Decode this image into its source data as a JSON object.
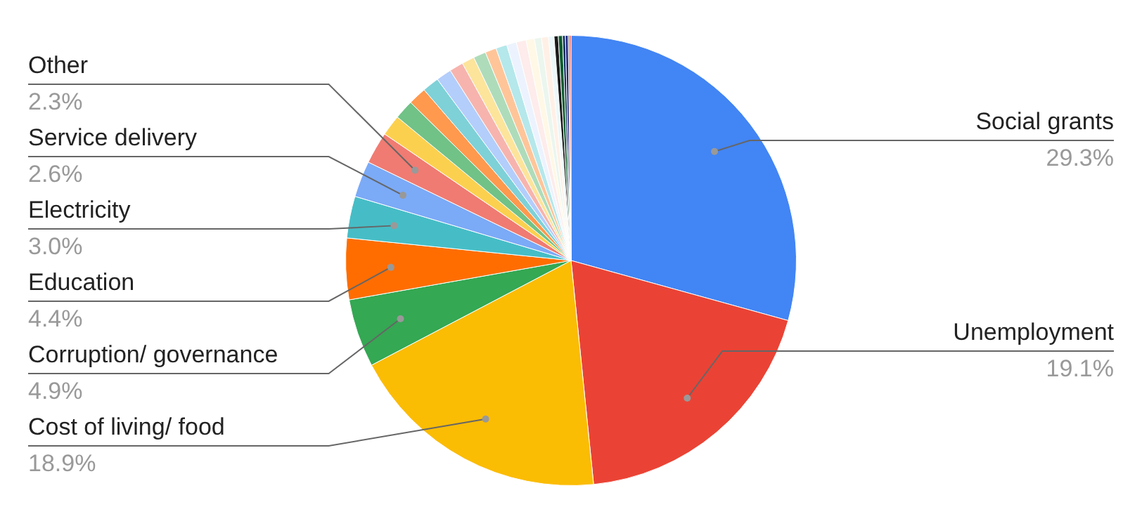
{
  "chart_data": {
    "type": "pie",
    "categories": [
      "Social grants",
      "Unemployment",
      "Cost of living/ food",
      "Corruption/ governance",
      "Education",
      "Electricity",
      "Service delivery",
      "Other",
      null,
      null,
      null,
      null,
      null,
      null,
      null,
      null,
      null,
      null,
      null,
      null,
      null,
      null,
      null,
      null,
      null,
      null,
      null,
      null,
      null,
      null
    ],
    "values": [
      29.3,
      19.1,
      18.9,
      4.9,
      4.4,
      3.0,
      2.6,
      2.3,
      1.5,
      1.4,
      1.3,
      1.2,
      1.1,
      1.0,
      0.9,
      0.9,
      0.8,
      0.8,
      0.7,
      0.7,
      0.6,
      0.5,
      0.5,
      0.4,
      0.3,
      0.3,
      0.2,
      0.2,
      0.1,
      0.1
    ],
    "colors": [
      "#4285f4",
      "#ea4335",
      "#fbbc04",
      "#34a853",
      "#ff6d01",
      "#46bdc6",
      "#7baaf7",
      "#f07b72",
      "#fcd04f",
      "#71c287",
      "#ff994d",
      "#7ed1d7",
      "#b3cefb",
      "#f7b4ae",
      "#fde49b",
      "#aedcba",
      "#ffc599",
      "#b5e8eb",
      "#ecf3fe",
      "#fdeceb",
      "#fff8e6",
      "#ebf6ee",
      "#fff0e6",
      "#ecf8f9",
      "#1a1a1a",
      "#0b5c2e",
      "#0d2c5e",
      "#1a237e",
      "#3d3d3d",
      "#e01e1e"
    ],
    "value_labels": [
      "29.3%",
      "19.1%",
      "18.9%",
      "4.9%",
      "4.4%",
      "3.0%",
      "2.6%",
      "2.3%",
      null,
      null,
      null,
      null,
      null,
      null,
      null,
      null,
      null,
      null,
      null,
      null,
      null,
      null,
      null,
      null,
      null,
      null,
      null,
      null,
      null,
      null
    ],
    "legend": false
  }
}
